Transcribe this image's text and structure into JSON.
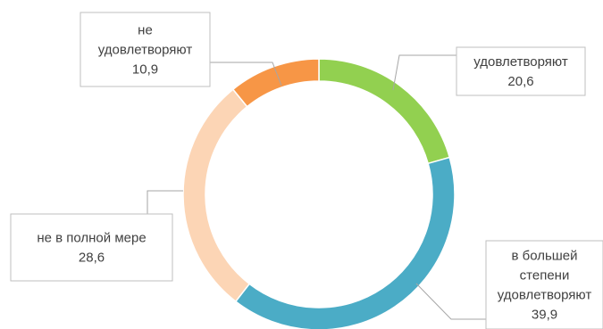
{
  "chart_data": {
    "type": "pie",
    "variant": "doughnut",
    "title": "",
    "slices": [
      {
        "label_lines": [
          "удовлетворяют"
        ],
        "value": 20.6,
        "value_text": "20,6",
        "color": "#92d050"
      },
      {
        "label_lines": [
          "в большей",
          "степени",
          "удовлетворяют"
        ],
        "value": 39.9,
        "value_text": "39,9",
        "color": "#4bacc6"
      },
      {
        "label_lines": [
          "не в полной мере"
        ],
        "value": 28.6,
        "value_text": "28,6",
        "color": "#fcd5b5"
      },
      {
        "label_lines": [
          "не",
          "удовлетворяют"
        ],
        "value": 10.9,
        "value_text": "10,9",
        "color": "#f79646"
      }
    ],
    "legend": "none",
    "data_labels": "callout boxes with leader lines"
  }
}
